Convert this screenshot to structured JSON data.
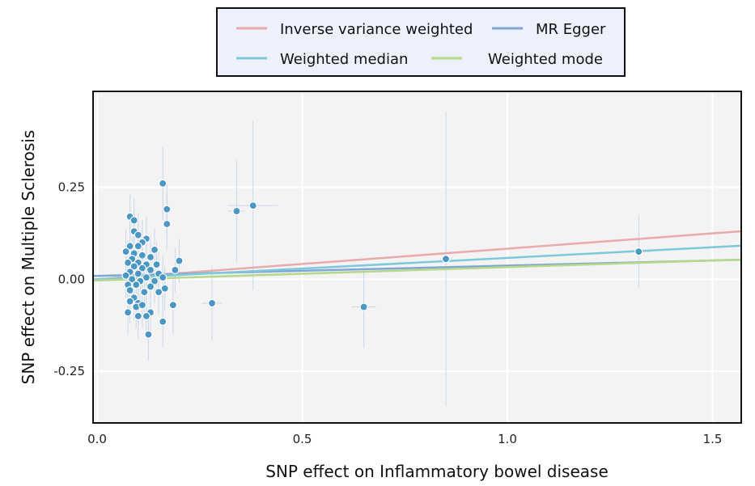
{
  "chart_data": {
    "type": "scatter",
    "xlabel": "SNP effect on Inflammatory bowel disease",
    "ylabel": "SNP effect on Multiple Sclerosis",
    "xlim": [
      -0.01,
      1.57
    ],
    "ylim": [
      -0.39,
      0.51
    ],
    "x_ticks": [
      {
        "value": 0.0,
        "label": "0.0"
      },
      {
        "value": 0.5,
        "label": "0.5"
      },
      {
        "value": 1.0,
        "label": "1.0"
      },
      {
        "value": 1.5,
        "label": "1.5"
      }
    ],
    "y_ticks": [
      {
        "value": 0.25,
        "label": "0.25"
      },
      {
        "value": 0.0,
        "label": "0.00"
      },
      {
        "value": -0.25,
        "label": "-0.25"
      }
    ],
    "grid": true,
    "legend_position": "top",
    "legend": [
      {
        "label": "Inverse variance weighted",
        "color": "#e8aaaa"
      },
      {
        "label": "MR Egger",
        "color": "#7fa6d4"
      },
      {
        "label": "Weighted median",
        "color": "#7ec8dc"
      },
      {
        "label": "Weighted mode",
        "color": "#b5d88a"
      }
    ],
    "series": [
      {
        "name": "Inverse variance weighted",
        "type": "line",
        "color": "#e8aaaa",
        "intercept": 0.0,
        "slope": 0.083
      },
      {
        "name": "MR Egger",
        "type": "line",
        "color": "#7fa6d4",
        "intercept": 0.009,
        "slope": 0.028
      },
      {
        "name": "Weighted median",
        "type": "line",
        "color": "#7ec8dc",
        "intercept": 0.0,
        "slope": 0.058
      },
      {
        "name": "Weighted mode",
        "type": "line",
        "color": "#b5d88a",
        "intercept": -0.003,
        "slope": 0.036
      }
    ],
    "point_color": "#4b97c4",
    "points": [
      {
        "x": 0.16,
        "y": 0.26,
        "x_err": 0.008,
        "y_err": 0.1
      },
      {
        "x": 0.17,
        "y": 0.19,
        "x_err": 0.008,
        "y_err": 0.07
      },
      {
        "x": 0.17,
        "y": 0.15,
        "x_err": 0.008,
        "y_err": 0.07
      },
      {
        "x": 0.34,
        "y": 0.185,
        "x_err": 0.02,
        "y_err": 0.14
      },
      {
        "x": 0.38,
        "y": 0.2,
        "x_err": 0.06,
        "y_err": 0.23
      },
      {
        "x": 0.08,
        "y": 0.17,
        "x_err": 0.008,
        "y_err": 0.06
      },
      {
        "x": 0.09,
        "y": 0.16,
        "x_err": 0.008,
        "y_err": 0.06
      },
      {
        "x": 0.09,
        "y": 0.13,
        "x_err": 0.008,
        "y_err": 0.06
      },
      {
        "x": 0.1,
        "y": 0.12,
        "x_err": 0.008,
        "y_err": 0.06
      },
      {
        "x": 0.12,
        "y": 0.11,
        "x_err": 0.008,
        "y_err": 0.06
      },
      {
        "x": 0.11,
        "y": 0.1,
        "x_err": 0.008,
        "y_err": 0.06
      },
      {
        "x": 0.08,
        "y": 0.09,
        "x_err": 0.008,
        "y_err": 0.06
      },
      {
        "x": 0.1,
        "y": 0.09,
        "x_err": 0.008,
        "y_err": 0.06
      },
      {
        "x": 0.14,
        "y": 0.08,
        "x_err": 0.008,
        "y_err": 0.06
      },
      {
        "x": 0.07,
        "y": 0.075,
        "x_err": 0.008,
        "y_err": 0.06
      },
      {
        "x": 0.09,
        "y": 0.07,
        "x_err": 0.008,
        "y_err": 0.06
      },
      {
        "x": 0.11,
        "y": 0.065,
        "x_err": 0.008,
        "y_err": 0.06
      },
      {
        "x": 0.13,
        "y": 0.06,
        "x_err": 0.008,
        "y_err": 0.06
      },
      {
        "x": 0.085,
        "y": 0.055,
        "x_err": 0.008,
        "y_err": 0.06
      },
      {
        "x": 0.2,
        "y": 0.05,
        "x_err": 0.01,
        "y_err": 0.06
      },
      {
        "x": 0.075,
        "y": 0.045,
        "x_err": 0.008,
        "y_err": 0.06
      },
      {
        "x": 0.1,
        "y": 0.045,
        "x_err": 0.008,
        "y_err": 0.06
      },
      {
        "x": 0.12,
        "y": 0.04,
        "x_err": 0.008,
        "y_err": 0.06
      },
      {
        "x": 0.145,
        "y": 0.04,
        "x_err": 0.008,
        "y_err": 0.06
      },
      {
        "x": 0.09,
        "y": 0.035,
        "x_err": 0.008,
        "y_err": 0.06
      },
      {
        "x": 0.11,
        "y": 0.03,
        "x_err": 0.008,
        "y_err": 0.06
      },
      {
        "x": 0.13,
        "y": 0.025,
        "x_err": 0.008,
        "y_err": 0.06
      },
      {
        "x": 0.19,
        "y": 0.025,
        "x_err": 0.01,
        "y_err": 0.06
      },
      {
        "x": 0.08,
        "y": 0.02,
        "x_err": 0.008,
        "y_err": 0.06
      },
      {
        "x": 0.1,
        "y": 0.015,
        "x_err": 0.008,
        "y_err": 0.06
      },
      {
        "x": 0.15,
        "y": 0.015,
        "x_err": 0.008,
        "y_err": 0.06
      },
      {
        "x": 0.07,
        "y": 0.01,
        "x_err": 0.008,
        "y_err": 0.06
      },
      {
        "x": 0.12,
        "y": 0.005,
        "x_err": 0.008,
        "y_err": 0.06
      },
      {
        "x": 0.16,
        "y": 0.005,
        "x_err": 0.008,
        "y_err": 0.06
      },
      {
        "x": 0.085,
        "y": 0.0,
        "x_err": 0.008,
        "y_err": 0.06
      },
      {
        "x": 0.105,
        "y": -0.005,
        "x_err": 0.008,
        "y_err": 0.06
      },
      {
        "x": 0.14,
        "y": -0.005,
        "x_err": 0.008,
        "y_err": 0.06
      },
      {
        "x": 0.075,
        "y": -0.015,
        "x_err": 0.008,
        "y_err": 0.06
      },
      {
        "x": 0.095,
        "y": -0.015,
        "x_err": 0.008,
        "y_err": 0.06
      },
      {
        "x": 0.13,
        "y": -0.02,
        "x_err": 0.008,
        "y_err": 0.06
      },
      {
        "x": 0.165,
        "y": -0.025,
        "x_err": 0.008,
        "y_err": 0.06
      },
      {
        "x": 0.08,
        "y": -0.03,
        "x_err": 0.008,
        "y_err": 0.06
      },
      {
        "x": 0.115,
        "y": -0.035,
        "x_err": 0.008,
        "y_err": 0.06
      },
      {
        "x": 0.15,
        "y": -0.035,
        "x_err": 0.008,
        "y_err": 0.06
      },
      {
        "x": 0.09,
        "y": -0.05,
        "x_err": 0.008,
        "y_err": 0.06
      },
      {
        "x": 0.08,
        "y": -0.06,
        "x_err": 0.008,
        "y_err": 0.06
      },
      {
        "x": 0.1,
        "y": -0.065,
        "x_err": 0.008,
        "y_err": 0.06
      },
      {
        "x": 0.185,
        "y": -0.07,
        "x_err": 0.01,
        "y_err": 0.08
      },
      {
        "x": 0.095,
        "y": -0.075,
        "x_err": 0.008,
        "y_err": 0.06
      },
      {
        "x": 0.11,
        "y": -0.07,
        "x_err": 0.008,
        "y_err": 0.06
      },
      {
        "x": 0.28,
        "y": -0.065,
        "x_err": 0.025,
        "y_err": 0.1
      },
      {
        "x": 0.075,
        "y": -0.09,
        "x_err": 0.008,
        "y_err": 0.06
      },
      {
        "x": 0.13,
        "y": -0.09,
        "x_err": 0.008,
        "y_err": 0.06
      },
      {
        "x": 0.1,
        "y": -0.1,
        "x_err": 0.008,
        "y_err": 0.06
      },
      {
        "x": 0.12,
        "y": -0.1,
        "x_err": 0.008,
        "y_err": 0.06
      },
      {
        "x": 0.16,
        "y": -0.115,
        "x_err": 0.008,
        "y_err": 0.07
      },
      {
        "x": 0.125,
        "y": -0.15,
        "x_err": 0.008,
        "y_err": 0.07
      },
      {
        "x": 0.65,
        "y": -0.075,
        "x_err": 0.03,
        "y_err": 0.11
      },
      {
        "x": 0.85,
        "y": 0.055,
        "x_err": 0.01,
        "y_err": 0.4
      },
      {
        "x": 1.32,
        "y": 0.075,
        "x_err": 0.03,
        "y_err": 0.1
      }
    ]
  }
}
